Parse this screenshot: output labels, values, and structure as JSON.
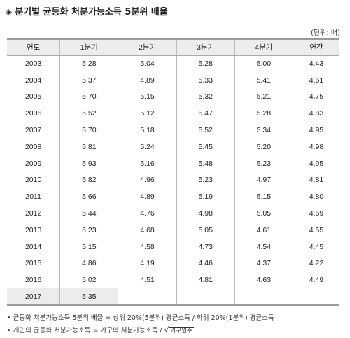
{
  "title": "분기별 균등화 처분가능소득 5분위 배율",
  "title_marker": "◈",
  "unit": "(단위: 배)",
  "headers": [
    "연도",
    "1분기",
    "2분기",
    "3분기",
    "4분기",
    "연간"
  ],
  "rows": [
    [
      "2003",
      "5.28",
      "5.04",
      "5.28",
      "5.00",
      "4.43"
    ],
    [
      "2004",
      "5.37",
      "4.89",
      "5.33",
      "5.41",
      "4.61"
    ],
    [
      "2005",
      "5.70",
      "5.15",
      "5.32",
      "5.21",
      "4.75"
    ],
    [
      "2006",
      "5.52",
      "5.12",
      "5.47",
      "5.28",
      "4.83"
    ],
    [
      "2007",
      "5.70",
      "5.18",
      "5.52",
      "5.34",
      "4.95"
    ],
    [
      "2008",
      "5.81",
      "5.24",
      "5.45",
      "5.20",
      "4.98"
    ],
    [
      "2009",
      "5.93",
      "5.16",
      "5.48",
      "5.23",
      "4.95"
    ],
    [
      "2010",
      "5.82",
      "4.96",
      "5.23",
      "4.97",
      "4.81"
    ],
    [
      "2011",
      "5.66",
      "4.89",
      "5.19",
      "5.15",
      "4.80"
    ],
    [
      "2012",
      "5.44",
      "4.76",
      "4.98",
      "5.05",
      "4.69"
    ],
    [
      "2013",
      "5.23",
      "4.68",
      "5.05",
      "4.61",
      "4.55"
    ],
    [
      "2014",
      "5.15",
      "4.58",
      "4.73",
      "4.54",
      "4.45"
    ],
    [
      "2015",
      "4.86",
      "4.19",
      "4.46",
      "4.37",
      "4.22"
    ],
    [
      "2016",
      "5.02",
      "4.51",
      "4.81",
      "4.63",
      "4.49"
    ],
    [
      "2017",
      "5.35",
      "",
      "",
      "",
      ""
    ]
  ],
  "notes": {
    "note1": "• 균등화 처분가능소득 5분위 배율 = 상위 20%(5분위) 평균소득 / 하위 20%(1분위) 평균소득",
    "note2_prefix": "• 개인의 균등화 처분가능소득 = 가구의 처분가능소득 /",
    "note2_radicand": "가구원수"
  }
}
